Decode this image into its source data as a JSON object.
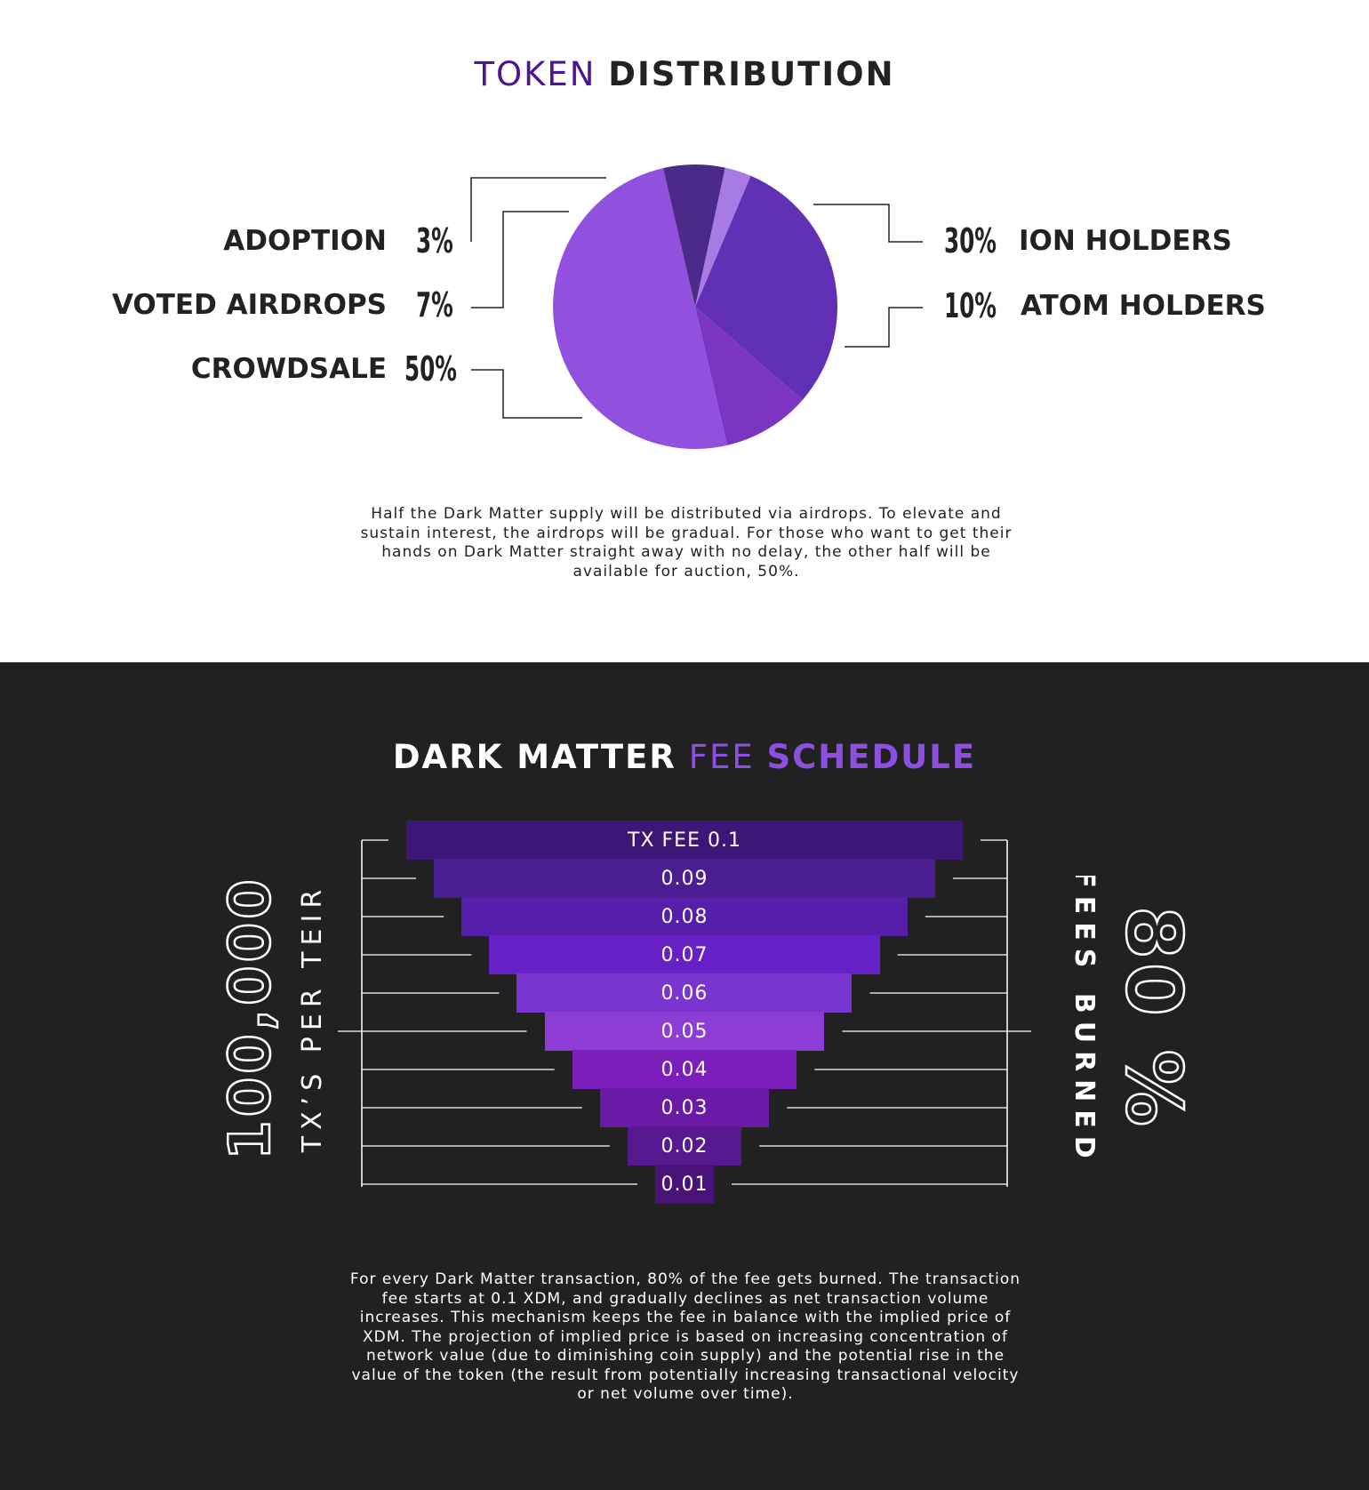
{
  "token_section": {
    "title_light": "TOKEN",
    "title_bold": "DISTRIBUTION",
    "paragraph": "Half the Dark Matter supply will be distributed via airdrops. To elevate and sustain interest, the airdrops will be gradual. For those who want to get their hands on Dark Matter straight away with no delay, the other half will be available for auction, 50%."
  },
  "fee_section": {
    "title_white": "DARK MATTER",
    "title_light": "FEE",
    "title_bold": "SCHEDULE",
    "left_big": "100,000",
    "left_small": "TX’S PER TEIR",
    "right_big": "80 %",
    "right_small": "FEES BURNED",
    "paragraph": "For every Dark Matter transaction, 80% of the fee gets burned. The transaction fee starts at 0.1 XDM, and gradually declines as net transaction volume increases. This mechanism keeps the fee in balance with the implied price of XDM. The projection of implied price is based on increasing concentration of network value (due to diminishing coin supply) and the potential rise in the value of the token (the result from potentially increasing transactional velocity or net volume over time)."
  },
  "chart_data": [
    {
      "type": "pie",
      "title": "TOKEN DISTRIBUTION",
      "slices": [
        {
          "label": "ION HOLDERS",
          "pct_label": "30%",
          "value": 30,
          "color": "#6230b4"
        },
        {
          "label": "ATOM HOLDERS",
          "pct_label": "10%",
          "value": 10,
          "color": "#7c34c2"
        },
        {
          "label": "CROWDSALE",
          "pct_label": "50%",
          "value": 50,
          "color": "#9150dd"
        },
        {
          "label": "VOTED AIRDROPS",
          "pct_label": "7%",
          "value": 7,
          "color": "#4c2a8a"
        },
        {
          "label": "ADOPTION",
          "pct_label": "3%",
          "value": 3,
          "color": "#a77ae4"
        }
      ]
    },
    {
      "type": "bar",
      "title": "DARK MATTER FEE SCHEDULE",
      "categories": [
        "TX FEE 0.1",
        "0.09",
        "0.08",
        "0.07",
        "0.06",
        "0.05",
        "0.04",
        "0.03",
        "0.02",
        "0.01"
      ],
      "values": [
        0.1,
        0.09,
        0.08,
        0.07,
        0.06,
        0.05,
        0.04,
        0.03,
        0.02,
        0.01
      ],
      "colors": [
        "#3d1775",
        "#4a1d92",
        "#551eab",
        "#6620c6",
        "#7a34cf",
        "#8d3dd5",
        "#7c1ebb",
        "#6a1aa6",
        "#58188f",
        "#49137a"
      ]
    }
  ]
}
